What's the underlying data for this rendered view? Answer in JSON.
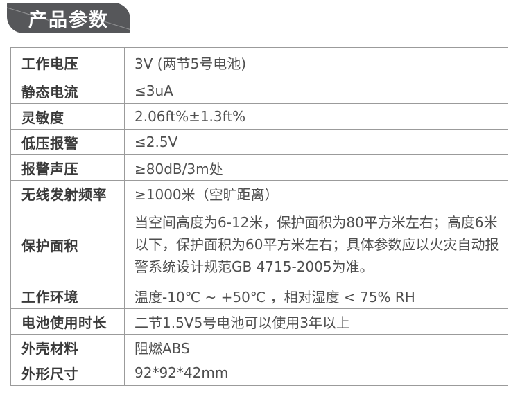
{
  "header": {
    "title": "产品参数"
  },
  "colors": {
    "badge_bg": "#56575a",
    "badge_text": "#ffffff",
    "table_border": "#9b9b9b",
    "label_text": "#3a3a3a",
    "value_text": "#4e4e4e"
  },
  "table": {
    "rows": [
      {
        "label": "工作电压",
        "value": "3V (两节5号电池)",
        "tall": false
      },
      {
        "label": "静态电流",
        "value": "≤3uA",
        "tall": false
      },
      {
        "label": "灵敏度",
        "value": "2.06ft%±1.3ft%",
        "tall": false
      },
      {
        "label": "低压报警",
        "value": "≤2.5V",
        "tall": false
      },
      {
        "label": "报警声压",
        "value": "≥80dB/3m处",
        "tall": false
      },
      {
        "label": "无线发射频率",
        "value": "≥1000米（空旷距离）",
        "tall": false
      },
      {
        "label": "保护面积",
        "value": "当空间高度为6-12米，保护面积为80平方米左右；高度6米以下，保护面积为60平方米左右；具体参数应以火灾自动报警系统设计规范GB 4715-2005为准。",
        "tall": true
      },
      {
        "label": "工作环境",
        "value": "温度-10℃ ~ +50℃ ，相对湿度 < 75% RH",
        "tall": false
      },
      {
        "label": "电池使用时长",
        "value": "二节1.5V5号电池可以使用3年以上",
        "tall": false
      },
      {
        "label": "外壳材料",
        "value": "阻燃ABS",
        "tall": false
      },
      {
        "label": "外形尺寸",
        "value": "92*92*42mm",
        "tall": false
      }
    ]
  }
}
